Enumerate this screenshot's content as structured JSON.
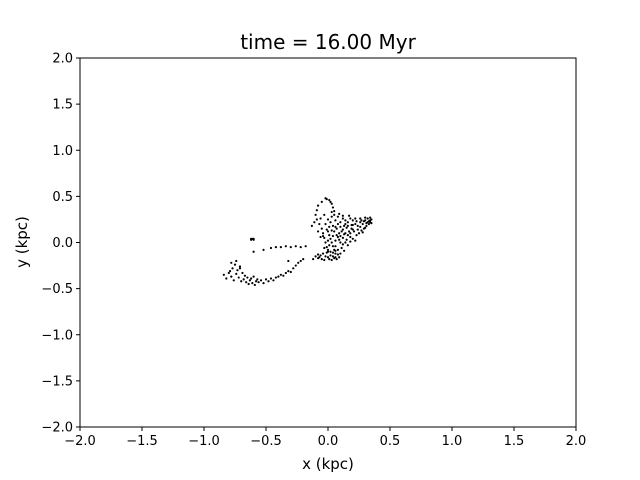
{
  "chart_data": {
    "type": "scatter",
    "title": "time = 16.00 Myr",
    "xlabel": "x (kpc)",
    "ylabel": "y (kpc)",
    "xlim": [
      -2.0,
      2.0
    ],
    "ylim": [
      -2.0,
      2.0
    ],
    "x_ticks": [
      "−2.0",
      "−1.5",
      "−1.0",
      "−0.5",
      "0.0",
      "0.5",
      "1.0",
      "1.5",
      "2.0"
    ],
    "y_ticks": [
      "−2.0",
      "−1.5",
      "−1.0",
      "−0.5",
      "0.0",
      "0.5",
      "1.0",
      "1.5",
      "2.0"
    ],
    "grid": false,
    "marker_color": "#000000",
    "points": [
      [
        -0.84,
        -0.35
      ],
      [
        -0.82,
        -0.39
      ],
      [
        -0.8,
        -0.33
      ],
      [
        -0.78,
        -0.37
      ],
      [
        -0.77,
        -0.28
      ],
      [
        -0.76,
        -0.41
      ],
      [
        -0.75,
        -0.24
      ],
      [
        -0.74,
        -0.34
      ],
      [
        -0.73,
        -0.3
      ],
      [
        -0.72,
        -0.38
      ],
      [
        -0.71,
        -0.26
      ],
      [
        -0.7,
        -0.42
      ],
      [
        -0.69,
        -0.33
      ],
      [
        -0.68,
        -0.4
      ],
      [
        -0.67,
        -0.36
      ],
      [
        -0.66,
        -0.43
      ],
      [
        -0.65,
        -0.38
      ],
      [
        -0.64,
        -0.45
      ],
      [
        -0.63,
        -0.41
      ],
      [
        -0.62,
        -0.39
      ],
      [
        -0.61,
        -0.44
      ],
      [
        -0.6,
        -0.37
      ],
      [
        -0.59,
        -0.46
      ],
      [
        -0.58,
        -0.42
      ],
      [
        -0.57,
        -0.4
      ],
      [
        -0.56,
        -0.43
      ],
      [
        -0.54,
        -0.41
      ],
      [
        -0.52,
        -0.44
      ],
      [
        -0.5,
        -0.4
      ],
      [
        -0.48,
        -0.42
      ],
      [
        -0.46,
        -0.39
      ],
      [
        -0.44,
        -0.41
      ],
      [
        -0.42,
        -0.38
      ],
      [
        -0.4,
        -0.37
      ],
      [
        -0.38,
        -0.35
      ],
      [
        -0.36,
        -0.36
      ],
      [
        -0.34,
        -0.33
      ],
      [
        -0.32,
        -0.31
      ],
      [
        -0.3,
        -0.32
      ],
      [
        -0.28,
        -0.28
      ],
      [
        -0.26,
        -0.25
      ],
      [
        -0.24,
        -0.22
      ],
      [
        -0.22,
        -0.2
      ],
      [
        -0.2,
        -0.18
      ],
      [
        -0.78,
        -0.22
      ],
      [
        -0.74,
        -0.2
      ],
      [
        -0.71,
        -0.28
      ],
      [
        -0.79,
        -0.31
      ],
      [
        -0.62,
        0.04
      ],
      [
        -0.61,
        0.04
      ],
      [
        -0.6,
        0.04
      ],
      [
        -0.62,
        0.03
      ],
      [
        -0.6,
        0.03
      ],
      [
        -0.6,
        -0.1
      ],
      [
        -0.52,
        -0.08
      ],
      [
        -0.46,
        -0.06
      ],
      [
        -0.42,
        -0.05
      ],
      [
        -0.38,
        -0.05
      ],
      [
        -0.34,
        -0.04
      ],
      [
        -0.3,
        -0.05
      ],
      [
        -0.26,
        -0.04
      ],
      [
        -0.22,
        -0.05
      ],
      [
        -0.18,
        -0.04
      ],
      [
        -0.32,
        -0.2
      ],
      [
        -0.12,
        -0.18
      ],
      [
        -0.1,
        -0.15
      ],
      [
        -0.08,
        -0.13
      ],
      [
        -0.02,
        0.48
      ],
      [
        -0.01,
        0.47
      ],
      [
        0.01,
        0.46
      ],
      [
        0.02,
        0.44
      ],
      [
        0.03,
        0.42
      ],
      [
        0.04,
        0.38
      ],
      [
        0.05,
        0.34
      ],
      [
        -0.05,
        0.44
      ],
      [
        -0.08,
        0.4
      ],
      [
        -0.09,
        0.35
      ],
      [
        -0.1,
        0.3
      ],
      [
        -0.09,
        0.25
      ],
      [
        -0.07,
        0.2
      ],
      [
        -0.05,
        0.15
      ],
      [
        -0.04,
        0.1
      ],
      [
        -0.03,
        0.05
      ],
      [
        -0.02,
        0.0
      ],
      [
        -0.01,
        -0.05
      ],
      [
        0.0,
        -0.1
      ],
      [
        0.0,
        0.12
      ],
      [
        0.01,
        0.08
      ],
      [
        0.02,
        0.04
      ],
      [
        0.03,
        0.0
      ],
      [
        0.04,
        -0.04
      ],
      [
        0.05,
        -0.08
      ],
      [
        0.06,
        -0.12
      ],
      [
        -0.04,
        -0.12
      ],
      [
        -0.06,
        -0.14
      ],
      [
        -0.07,
        -0.16
      ],
      [
        -0.02,
        -0.15
      ],
      [
        0.0,
        -0.16
      ],
      [
        0.02,
        -0.14
      ],
      [
        0.04,
        -0.15
      ],
      [
        0.06,
        -0.16
      ],
      [
        0.08,
        -0.13
      ],
      [
        -0.05,
        -0.18
      ],
      [
        -0.03,
        -0.19
      ],
      [
        0.01,
        -0.18
      ],
      [
        0.03,
        -0.19
      ],
      [
        0.05,
        -0.17
      ],
      [
        0.07,
        -0.18
      ],
      [
        -0.08,
        -0.17
      ],
      [
        0.09,
        -0.16
      ],
      [
        0.1,
        -0.12
      ],
      [
        0.02,
        -0.1
      ],
      [
        0.0,
        -0.08
      ],
      [
        -0.01,
        -0.11
      ],
      [
        0.04,
        -0.11
      ],
      [
        0.06,
        -0.09
      ],
      [
        0.08,
        -0.08
      ],
      [
        0.06,
        0.02
      ],
      [
        0.08,
        0.06
      ],
      [
        0.05,
        0.12
      ],
      [
        0.07,
        0.15
      ],
      [
        0.04,
        0.18
      ],
      [
        0.02,
        0.22
      ],
      [
        -0.02,
        0.2
      ],
      [
        0.0,
        0.25
      ],
      [
        0.03,
        0.28
      ],
      [
        0.06,
        0.24
      ],
      [
        0.08,
        0.2
      ],
      [
        0.1,
        0.17
      ],
      [
        0.12,
        0.14
      ],
      [
        0.14,
        0.1
      ],
      [
        0.16,
        0.08
      ],
      [
        0.18,
        0.06
      ],
      [
        0.2,
        0.04
      ],
      [
        0.22,
        0.02
      ],
      [
        0.1,
        0.22
      ],
      [
        0.12,
        0.26
      ],
      [
        0.14,
        0.24
      ],
      [
        0.16,
        0.22
      ],
      [
        0.18,
        0.26
      ],
      [
        0.2,
        0.24
      ],
      [
        0.22,
        0.2
      ],
      [
        0.24,
        0.18
      ],
      [
        0.26,
        0.22
      ],
      [
        0.28,
        0.2
      ],
      [
        0.3,
        0.24
      ],
      [
        0.32,
        0.22
      ],
      [
        0.34,
        0.24
      ],
      [
        0.33,
        0.2
      ],
      [
        0.31,
        0.18
      ],
      [
        0.29,
        0.15
      ],
      [
        0.27,
        0.13
      ],
      [
        0.25,
        0.1
      ],
      [
        0.23,
        0.08
      ],
      [
        0.21,
        0.12
      ],
      [
        0.19,
        0.15
      ],
      [
        0.17,
        0.12
      ],
      [
        0.15,
        0.16
      ],
      [
        0.13,
        0.18
      ],
      [
        0.11,
        0.12
      ],
      [
        0.09,
        0.1
      ],
      [
        0.07,
        0.08
      ],
      [
        0.12,
        0.05
      ],
      [
        0.15,
        0.03
      ],
      [
        0.18,
        0.1
      ],
      [
        0.2,
        0.14
      ],
      [
        0.24,
        0.14
      ],
      [
        0.26,
        0.17
      ],
      [
        0.28,
        0.11
      ],
      [
        0.3,
        0.16
      ],
      [
        0.32,
        0.26
      ],
      [
        0.34,
        0.27
      ],
      [
        0.35,
        0.21
      ],
      [
        0.3,
        0.27
      ],
      [
        0.26,
        0.26
      ],
      [
        0.22,
        0.26
      ],
      [
        0.2,
        0.19
      ],
      [
        0.16,
        0.18
      ],
      [
        0.14,
        0.2
      ],
      [
        0.08,
        0.28
      ],
      [
        0.05,
        0.3
      ],
      [
        0.09,
        0.31
      ],
      [
        0.12,
        0.29
      ],
      [
        0.17,
        0.29
      ],
      [
        0.03,
        0.33
      ],
      [
        -0.03,
        0.3
      ],
      [
        -0.06,
        0.26
      ],
      [
        -0.11,
        0.22
      ],
      [
        -0.13,
        0.18
      ],
      [
        -0.08,
        0.12
      ],
      [
        -0.06,
        0.06
      ],
      [
        0.04,
        0.07
      ],
      [
        0.09,
        0.03
      ],
      [
        0.01,
        -0.03
      ],
      [
        -0.03,
        -0.06
      ],
      [
        0.06,
        -0.04
      ],
      [
        0.11,
        -0.06
      ],
      [
        0.13,
        -0.09
      ],
      [
        0.12,
        -0.02
      ],
      [
        0.14,
        0.0
      ],
      [
        0.16,
        -0.03
      ],
      [
        0.18,
        0.01
      ],
      [
        0.1,
        0.0
      ],
      [
        -0.01,
        0.14
      ],
      [
        0.01,
        0.17
      ],
      [
        -0.04,
        0.07
      ],
      [
        0.0,
        0.02
      ],
      [
        0.03,
        0.13
      ],
      [
        0.06,
        0.17
      ],
      [
        0.1,
        0.07
      ],
      [
        0.13,
        0.09
      ],
      [
        0.19,
        0.19
      ],
      [
        0.23,
        0.23
      ],
      [
        0.27,
        0.24
      ],
      [
        0.29,
        0.23
      ],
      [
        0.31,
        0.21
      ],
      [
        0.33,
        0.23
      ],
      [
        0.35,
        0.25
      ],
      [
        0.34,
        0.22
      ]
    ]
  }
}
